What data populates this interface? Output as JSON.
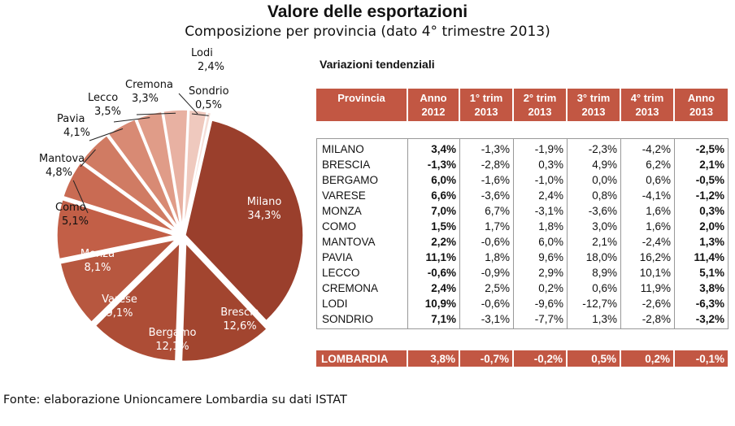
{
  "title": "Valore delle esportazioni",
  "subtitle": "Composizione per provincia (dato 4° trimestre 2013)",
  "chart_data": {
    "type": "pie",
    "title": "Valore delle esportazioni",
    "subtitle": "Composizione per provincia (dato 4° trimestre 2013)",
    "unit": "%",
    "slices": [
      {
        "name": "Milano",
        "label": "34,3%",
        "value": 34.3,
        "color": "#9a3f2c"
      },
      {
        "name": "Brescia",
        "label": "12,6%",
        "value": 12.6,
        "color": "#a2452f"
      },
      {
        "name": "Bergamo",
        "label": "12,1%",
        "value": 12.1,
        "color": "#ad4d36"
      },
      {
        "name": "Varese",
        "label": "9,1%",
        "value": 9.1,
        "color": "#b7573f"
      },
      {
        "name": "Monza",
        "label": "8,1%",
        "value": 8.1,
        "color": "#c25f47"
      },
      {
        "name": "Como",
        "label": "5,1%",
        "value": 5.1,
        "color": "#c96b53"
      },
      {
        "name": "Mantova",
        "label": "4,8%",
        "value": 4.8,
        "color": "#d07b63"
      },
      {
        "name": "Pavia",
        "label": "4,1%",
        "value": 4.1,
        "color": "#d88a74"
      },
      {
        "name": "Lecco",
        "label": "3,5%",
        "value": 3.5,
        "color": "#e09c88"
      },
      {
        "name": "Cremona",
        "label": "3,3%",
        "value": 3.3,
        "color": "#e8b1a2"
      },
      {
        "name": "Lodi",
        "label": "2,4%",
        "value": 2.4,
        "color": "#efc9be"
      },
      {
        "name": "Sondrio",
        "label": "0,5%",
        "value": 0.5,
        "color": "#f5ded7"
      }
    ]
  },
  "table": {
    "title": "Variazioni tendenziali",
    "headers": [
      [
        "Provincia",
        ""
      ],
      [
        "Anno",
        "2012"
      ],
      [
        "1° trim",
        "2013"
      ],
      [
        "2° trim",
        "2013"
      ],
      [
        "3° trim",
        "2013"
      ],
      [
        "4° trim",
        "2013"
      ],
      [
        "Anno",
        "2013"
      ]
    ],
    "rows": [
      [
        "MILANO",
        "3,4%",
        "-1,3%",
        "-1,9%",
        "-2,3%",
        "-4,2%",
        "-2,5%"
      ],
      [
        "BRESCIA",
        "-1,3%",
        "-2,8%",
        "0,3%",
        "4,9%",
        "6,2%",
        "2,1%"
      ],
      [
        "BERGAMO",
        "6,0%",
        "-1,6%",
        "-1,0%",
        "0,0%",
        "0,6%",
        "-0,5%"
      ],
      [
        "VARESE",
        "6,6%",
        "-3,6%",
        "2,4%",
        "0,8%",
        "-4,1%",
        "-1,2%"
      ],
      [
        "MONZA",
        "7,0%",
        "6,7%",
        "-3,1%",
        "-3,6%",
        "1,6%",
        "0,3%"
      ],
      [
        "COMO",
        "1,5%",
        "1,7%",
        "1,8%",
        "3,0%",
        "1,6%",
        "2,0%"
      ],
      [
        "MANTOVA",
        "2,2%",
        "-0,6%",
        "6,0%",
        "2,1%",
        "-2,4%",
        "1,3%"
      ],
      [
        "PAVIA",
        "11,1%",
        "1,8%",
        "9,6%",
        "18,0%",
        "16,2%",
        "11,4%"
      ],
      [
        "LECCO",
        "-0,6%",
        "-0,9%",
        "2,9%",
        "8,9%",
        "10,1%",
        "5,1%"
      ],
      [
        "CREMONA",
        "2,4%",
        "2,5%",
        "0,2%",
        "0,6%",
        "11,9%",
        "3,8%"
      ],
      [
        "LODI",
        "10,9%",
        "-0,6%",
        "-9,6%",
        "-12,7%",
        "-2,6%",
        "-6,3%"
      ],
      [
        "SONDRIO",
        "7,1%",
        "-3,1%",
        "-7,7%",
        "1,3%",
        "-2,8%",
        "-3,2%"
      ]
    ],
    "total": [
      "LOMBARDIA",
      "3,8%",
      "-0,7%",
      "-0,2%",
      "0,5%",
      "0,2%",
      "-0,1%"
    ]
  },
  "source": "Fonte: elaborazione Unioncamere Lombardia su dati ISTAT"
}
